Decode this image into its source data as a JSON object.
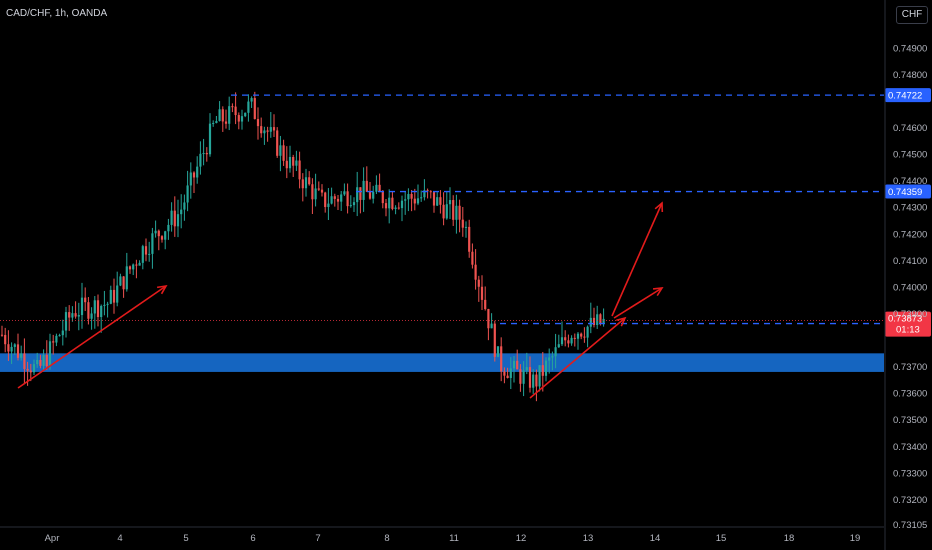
{
  "header": {
    "symbol": "CAD/CHF, 1h, OANDA"
  },
  "currency_label": "CHF",
  "colors": {
    "up": "#26a69a",
    "down": "#ef5350",
    "level_line": "#2962ff",
    "level_tag": "#2962ff",
    "current_tag": "#f23645",
    "support_zone": "#1565c0",
    "arrow": "#e21b1b"
  },
  "chart_data": {
    "type": "candlestick",
    "title": "CAD/CHF, 1h, OANDA",
    "xlabel": "",
    "ylabel": "",
    "ylim": [
      0.731,
      0.7505
    ],
    "y_ticks": [
      "0.74900",
      "0.74800",
      "0.74600",
      "0.74500",
      "0.74400",
      "0.74300",
      "0.74200",
      "0.74100",
      "0.74000",
      "0.73900",
      "0.73700",
      "0.73600",
      "0.73500",
      "0.73400",
      "0.73300",
      "0.73200",
      "0.73105"
    ],
    "x_ticks": [
      "Apr",
      "4",
      "5",
      "6",
      "7",
      "8",
      "11",
      "12",
      "13",
      "14",
      "15",
      "18",
      "19"
    ],
    "price_series": [
      [
        "Apr",
        0.7382
      ],
      [
        "Apr",
        0.7368
      ],
      [
        "4",
        0.7391
      ],
      [
        "4",
        0.7394
      ],
      [
        "5",
        0.7415
      ],
      [
        "5",
        0.7428
      ],
      [
        "6",
        0.7462
      ],
      [
        "6",
        0.7468
      ],
      [
        "7",
        0.7448
      ],
      [
        "7",
        0.7432
      ],
      [
        "8",
        0.7436
      ],
      [
        "8",
        0.7433
      ],
      [
        "11",
        0.7434
      ],
      [
        "11",
        0.7425
      ],
      [
        "12",
        0.7371
      ],
      [
        "12",
        0.7364
      ],
      [
        "13",
        0.7383
      ],
      [
        "13",
        0.7387
      ]
    ],
    "levels": [
      {
        "label": "0.74722",
        "value": 0.74722
      },
      {
        "label": "0.74359",
        "value": 0.74359
      },
      {
        "label": "0.73862",
        "value": 0.73862
      }
    ],
    "current_price": {
      "label": "0.73873",
      "countdown": "01:13",
      "value": 0.73873
    },
    "support_zone": [
      0.7368,
      0.7375
    ],
    "annotations": [
      "rising trendline arrow from Apr to 5",
      "rising trendline arrow under 12 to 13",
      "projection arrow to 14 near 0.7434",
      "projection arrow to 14 near 0.7399"
    ]
  }
}
